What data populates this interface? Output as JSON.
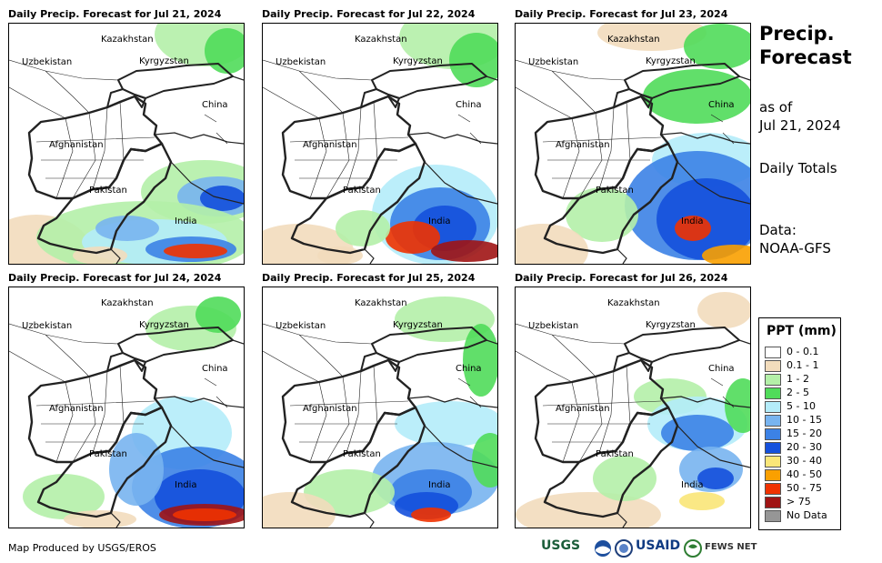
{
  "panels": [
    {
      "title": "Daily Precip. Forecast for Jul 21, 2024"
    },
    {
      "title": "Daily Precip. Forecast for Jul 22, 2024"
    },
    {
      "title": "Daily Precip. Forecast for Jul 23, 2024"
    },
    {
      "title": "Daily Precip. Forecast for Jul 24, 2024"
    },
    {
      "title": "Daily Precip. Forecast for Jul 25, 2024"
    },
    {
      "title": "Daily Precip. Forecast for Jul 26, 2024"
    }
  ],
  "map_labels": {
    "kazakhstan": "Kazakhstan",
    "uzbekistan": "Uzbekistan",
    "kyrgyzstan": "Kyrgyzstan",
    "china": "China",
    "afghanistan": "Afghanistan",
    "pakistan": "Pakistan",
    "india": "India"
  },
  "side": {
    "title_line1": "Precip.",
    "title_line2": "Forecast",
    "asof_line1": "as of",
    "asof_line2": "Jul 21, 2024",
    "totals": "Daily Totals",
    "data_line1": "Data:",
    "data_line2": "NOAA-GFS"
  },
  "legend": {
    "title": "PPT (mm)",
    "items": [
      {
        "label": "0 - 0.1",
        "color": "#ffffff"
      },
      {
        "label": "0.1 - 1",
        "color": "#f2dcbc"
      },
      {
        "label": "1 - 2",
        "color": "#b4f0a8"
      },
      {
        "label": "2 - 5",
        "color": "#50dc5a"
      },
      {
        "label": "5 - 10",
        "color": "#b4ecfa"
      },
      {
        "label": "10 - 15",
        "color": "#78b4f0"
      },
      {
        "label": "15 - 20",
        "color": "#3c82e6"
      },
      {
        "label": "20 - 30",
        "color": "#1450dc"
      },
      {
        "label": "30 - 40",
        "color": "#fae678"
      },
      {
        "label": "40 - 50",
        "color": "#faa000"
      },
      {
        "label": "50 - 75",
        "color": "#f03200"
      },
      {
        "label": "> 75",
        "color": "#a01414"
      },
      {
        "label": "No Data",
        "color": "#969696"
      }
    ]
  },
  "footer": {
    "credit": "Map Produced by USGS/EROS",
    "logos": [
      "USGS",
      "USAID",
      "FEWS NET"
    ]
  }
}
